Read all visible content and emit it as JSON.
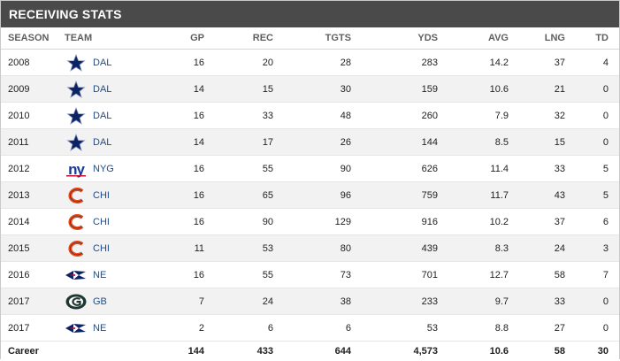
{
  "title": "RECEIVING STATS",
  "columns": [
    "SEASON",
    "TEAM",
    "GP",
    "REC",
    "TGTS",
    "YDS",
    "AVG",
    "LNG",
    "TD"
  ],
  "rows": [
    {
      "season": "2008",
      "team": "DAL",
      "logo": "cowboys-star-icon",
      "gp": "16",
      "rec": "20",
      "tgts": "28",
      "yds": "283",
      "avg": "14.2",
      "lng": "37",
      "td": "4"
    },
    {
      "season": "2009",
      "team": "DAL",
      "logo": "cowboys-star-icon",
      "gp": "14",
      "rec": "15",
      "tgts": "30",
      "yds": "159",
      "avg": "10.6",
      "lng": "21",
      "td": "0"
    },
    {
      "season": "2010",
      "team": "DAL",
      "logo": "cowboys-star-icon",
      "gp": "16",
      "rec": "33",
      "tgts": "48",
      "yds": "260",
      "avg": "7.9",
      "lng": "32",
      "td": "0"
    },
    {
      "season": "2011",
      "team": "DAL",
      "logo": "cowboys-star-icon",
      "gp": "14",
      "rec": "17",
      "tgts": "26",
      "yds": "144",
      "avg": "8.5",
      "lng": "15",
      "td": "0"
    },
    {
      "season": "2012",
      "team": "NYG",
      "logo": "giants-ny-icon",
      "gp": "16",
      "rec": "55",
      "tgts": "90",
      "yds": "626",
      "avg": "11.4",
      "lng": "33",
      "td": "5"
    },
    {
      "season": "2013",
      "team": "CHI",
      "logo": "bears-c-icon",
      "gp": "16",
      "rec": "65",
      "tgts": "96",
      "yds": "759",
      "avg": "11.7",
      "lng": "43",
      "td": "5"
    },
    {
      "season": "2014",
      "team": "CHI",
      "logo": "bears-c-icon",
      "gp": "16",
      "rec": "90",
      "tgts": "129",
      "yds": "916",
      "avg": "10.2",
      "lng": "37",
      "td": "6"
    },
    {
      "season": "2015",
      "team": "CHI",
      "logo": "bears-c-icon",
      "gp": "11",
      "rec": "53",
      "tgts": "80",
      "yds": "439",
      "avg": "8.3",
      "lng": "24",
      "td": "3"
    },
    {
      "season": "2016",
      "team": "NE",
      "logo": "patriots-icon",
      "gp": "16",
      "rec": "55",
      "tgts": "73",
      "yds": "701",
      "avg": "12.7",
      "lng": "58",
      "td": "7"
    },
    {
      "season": "2017",
      "team": "GB",
      "logo": "packers-g-icon",
      "gp": "7",
      "rec": "24",
      "tgts": "38",
      "yds": "233",
      "avg": "9.7",
      "lng": "33",
      "td": "0"
    },
    {
      "season": "2017",
      "team": "NE",
      "logo": "patriots-icon",
      "gp": "2",
      "rec": "6",
      "tgts": "6",
      "yds": "53",
      "avg": "8.8",
      "lng": "27",
      "td": "0"
    }
  ],
  "career": {
    "label": "Career",
    "gp": "144",
    "rec": "433",
    "tgts": "644",
    "yds": "4,573",
    "avg": "10.6",
    "lng": "58",
    "td": "30"
  },
  "colors": {
    "title_bg": "#4a4a4a",
    "link": "#1e4c8c",
    "row_alt": "#f2f2f2",
    "cowboys": "#0b2265",
    "giants": "#1a3a8f",
    "giants_red": "#c8102e",
    "bears": "#e64a19",
    "packers": "#203731",
    "packers_gold": "#ffb612",
    "patriots": "#0b2265",
    "patriots_red": "#c8102e"
  }
}
